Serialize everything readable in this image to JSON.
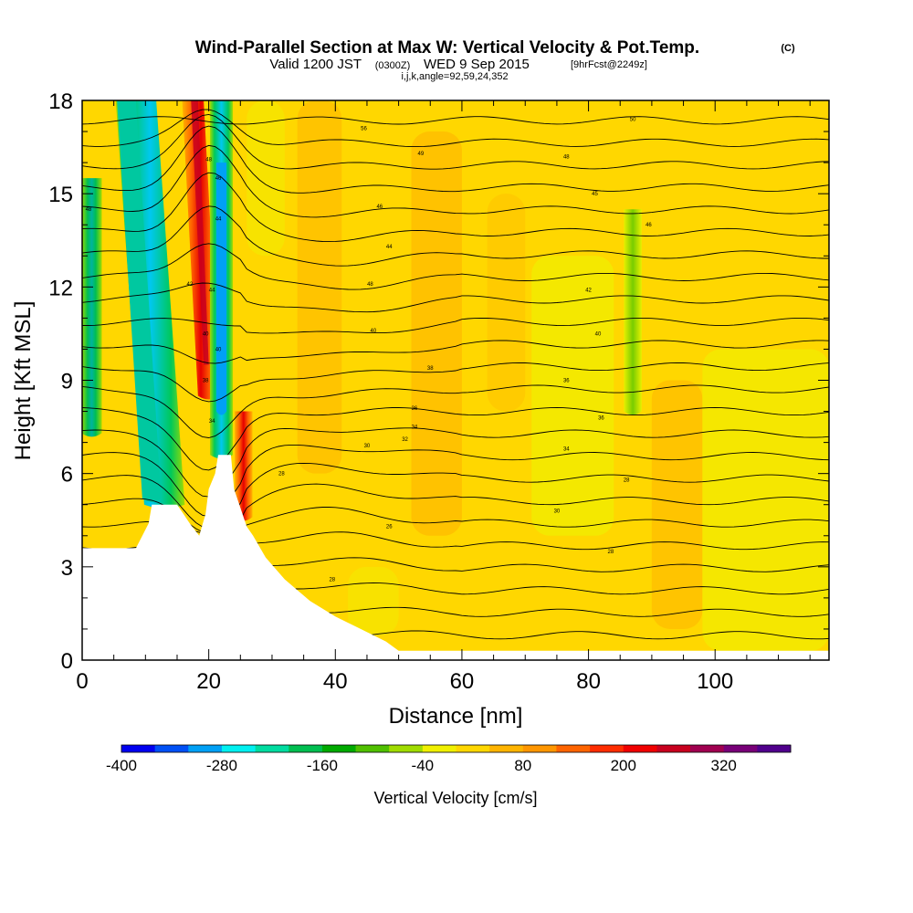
{
  "header": {
    "title": "Wind-Parallel Section at Max W: Vertical Velocity & Pot.Temp.",
    "copyright": "(C)",
    "valid_prefix": "Valid 1200 JST",
    "valid_utc": "(0300Z)",
    "valid_date": "WED 9 Sep 2015",
    "forecast": "[9hrFcst@2249z]",
    "indices": "i,j,k,angle=92,59,24,352"
  },
  "chart_data": {
    "type": "heatmap",
    "title": "Wind-Parallel Section at Max W: Vertical Velocity & Pot.Temp.",
    "xlabel": "Distance [nm]",
    "ylabel": "Height [Kft MSL]",
    "xlim": [
      0,
      118
    ],
    "ylim": [
      0,
      18
    ],
    "x_ticks": [
      0,
      20,
      40,
      60,
      80,
      100
    ],
    "y_ticks": [
      0,
      3,
      6,
      9,
      12,
      15,
      18
    ],
    "grid": false,
    "colorbar": {
      "label": "Vertical Velocity [cm/s]",
      "tick_labels": [
        "-400",
        "-280",
        "-160",
        "-40",
        "80",
        "200",
        "320"
      ],
      "colors": [
        "#0000f0",
        "#0050f5",
        "#00a0f5",
        "#00f0f0",
        "#00dca0",
        "#00be50",
        "#00aa00",
        "#50c000",
        "#a0dc00",
        "#f0f000",
        "#ffd700",
        "#ffb400",
        "#ff9600",
        "#ff6400",
        "#ff2d00",
        "#f00000",
        "#c8001e",
        "#a00050",
        "#780078",
        "#50008c"
      ]
    },
    "vertical_velocity_features": [
      {
        "kind": "downdraft",
        "center_x": 22,
        "height_range": [
          6.5,
          18
        ],
        "min_cm_s": -320
      },
      {
        "kind": "updraft",
        "center_x": 18,
        "height_range": [
          8,
          18
        ],
        "max_cm_s": 280
      },
      {
        "kind": "downdraft",
        "center_x": 12,
        "height_range": [
          5,
          18
        ],
        "min_cm_s": -200
      },
      {
        "kind": "updraft",
        "center_x": 25,
        "height_range": [
          5,
          8
        ],
        "max_cm_s": 260
      },
      {
        "kind": "downdraft",
        "center_x": 87,
        "height_range": [
          8,
          15
        ],
        "min_cm_s": -80
      },
      {
        "kind": "downdraft",
        "center_x": 2,
        "height_range": [
          7,
          15
        ],
        "min_cm_s": -100
      }
    ],
    "terrain": [
      {
        "x": 0,
        "height": 3.6
      },
      {
        "x": 8.5,
        "height": 3.6
      },
      {
        "x": 9.5,
        "height": 4.0
      },
      {
        "x": 10.5,
        "height": 4.4
      },
      {
        "x": 11,
        "height": 5.0
      },
      {
        "x": 15,
        "height": 5.0
      },
      {
        "x": 16,
        "height": 4.7
      },
      {
        "x": 17,
        "height": 4.4
      },
      {
        "x": 18.5,
        "height": 4.0
      },
      {
        "x": 19.5,
        "height": 4.7
      },
      {
        "x": 20,
        "height": 5.5
      },
      {
        "x": 21,
        "height": 6.0
      },
      {
        "x": 21.5,
        "height": 6.6
      },
      {
        "x": 23.5,
        "height": 6.6
      },
      {
        "x": 24,
        "height": 5.5
      },
      {
        "x": 25,
        "height": 4.9
      },
      {
        "x": 26,
        "height": 4.3
      },
      {
        "x": 27,
        "height": 4.0
      },
      {
        "x": 29,
        "height": 3.3
      },
      {
        "x": 32,
        "height": 2.6
      },
      {
        "x": 36,
        "height": 1.9
      },
      {
        "x": 40,
        "height": 1.4
      },
      {
        "x": 44,
        "height": 1.0
      },
      {
        "x": 48,
        "height": 0.6
      },
      {
        "x": 50,
        "height": 0.3
      },
      {
        "x": 118,
        "height": 0.3
      }
    ],
    "theta_contour_labels": [
      {
        "x": 1,
        "y": 14.5,
        "label": "48"
      },
      {
        "x": 44.5,
        "y": 17.1,
        "label": "56"
      },
      {
        "x": 53.5,
        "y": 16.3,
        "label": "49"
      },
      {
        "x": 76.5,
        "y": 16.2,
        "label": "48"
      },
      {
        "x": 87,
        "y": 17.4,
        "label": "50"
      },
      {
        "x": 47,
        "y": 14.6,
        "label": "46"
      },
      {
        "x": 81,
        "y": 15.0,
        "label": "45"
      },
      {
        "x": 89.5,
        "y": 14.0,
        "label": "46"
      },
      {
        "x": 48.5,
        "y": 13.3,
        "label": "44"
      },
      {
        "x": 45.5,
        "y": 12.1,
        "label": "48"
      },
      {
        "x": 80,
        "y": 11.9,
        "label": "42"
      },
      {
        "x": 46,
        "y": 10.6,
        "label": "40"
      },
      {
        "x": 81.5,
        "y": 10.5,
        "label": "40"
      },
      {
        "x": 55,
        "y": 9.4,
        "label": "38"
      },
      {
        "x": 76.5,
        "y": 9.0,
        "label": "36"
      },
      {
        "x": 52.5,
        "y": 8.1,
        "label": "36"
      },
      {
        "x": 82,
        "y": 7.8,
        "label": "36"
      },
      {
        "x": 52.5,
        "y": 7.5,
        "label": "34"
      },
      {
        "x": 51,
        "y": 7.1,
        "label": "32"
      },
      {
        "x": 45,
        "y": 6.9,
        "label": "30"
      },
      {
        "x": 76.5,
        "y": 6.8,
        "label": "34"
      },
      {
        "x": 86,
        "y": 5.8,
        "label": "28"
      },
      {
        "x": 75,
        "y": 4.8,
        "label": "30"
      },
      {
        "x": 48.5,
        "y": 4.3,
        "label": "26"
      },
      {
        "x": 83.5,
        "y": 3.5,
        "label": "28"
      },
      {
        "x": 39.5,
        "y": 2.6,
        "label": "28"
      },
      {
        "x": 31.5,
        "y": 6.0,
        "label": "28"
      },
      {
        "x": 20,
        "y": 16.1,
        "label": "48"
      },
      {
        "x": 21.5,
        "y": 15.5,
        "label": "46"
      },
      {
        "x": 21.5,
        "y": 14.2,
        "label": "44"
      },
      {
        "x": 17,
        "y": 12.1,
        "label": "42"
      },
      {
        "x": 20.5,
        "y": 11.9,
        "label": "44"
      },
      {
        "x": 19.5,
        "y": 10.5,
        "label": "40"
      },
      {
        "x": 21.5,
        "y": 10.0,
        "label": "40"
      },
      {
        "x": 19.5,
        "y": 9.0,
        "label": "38"
      },
      {
        "x": 20.5,
        "y": 7.7,
        "label": "34"
      }
    ]
  }
}
